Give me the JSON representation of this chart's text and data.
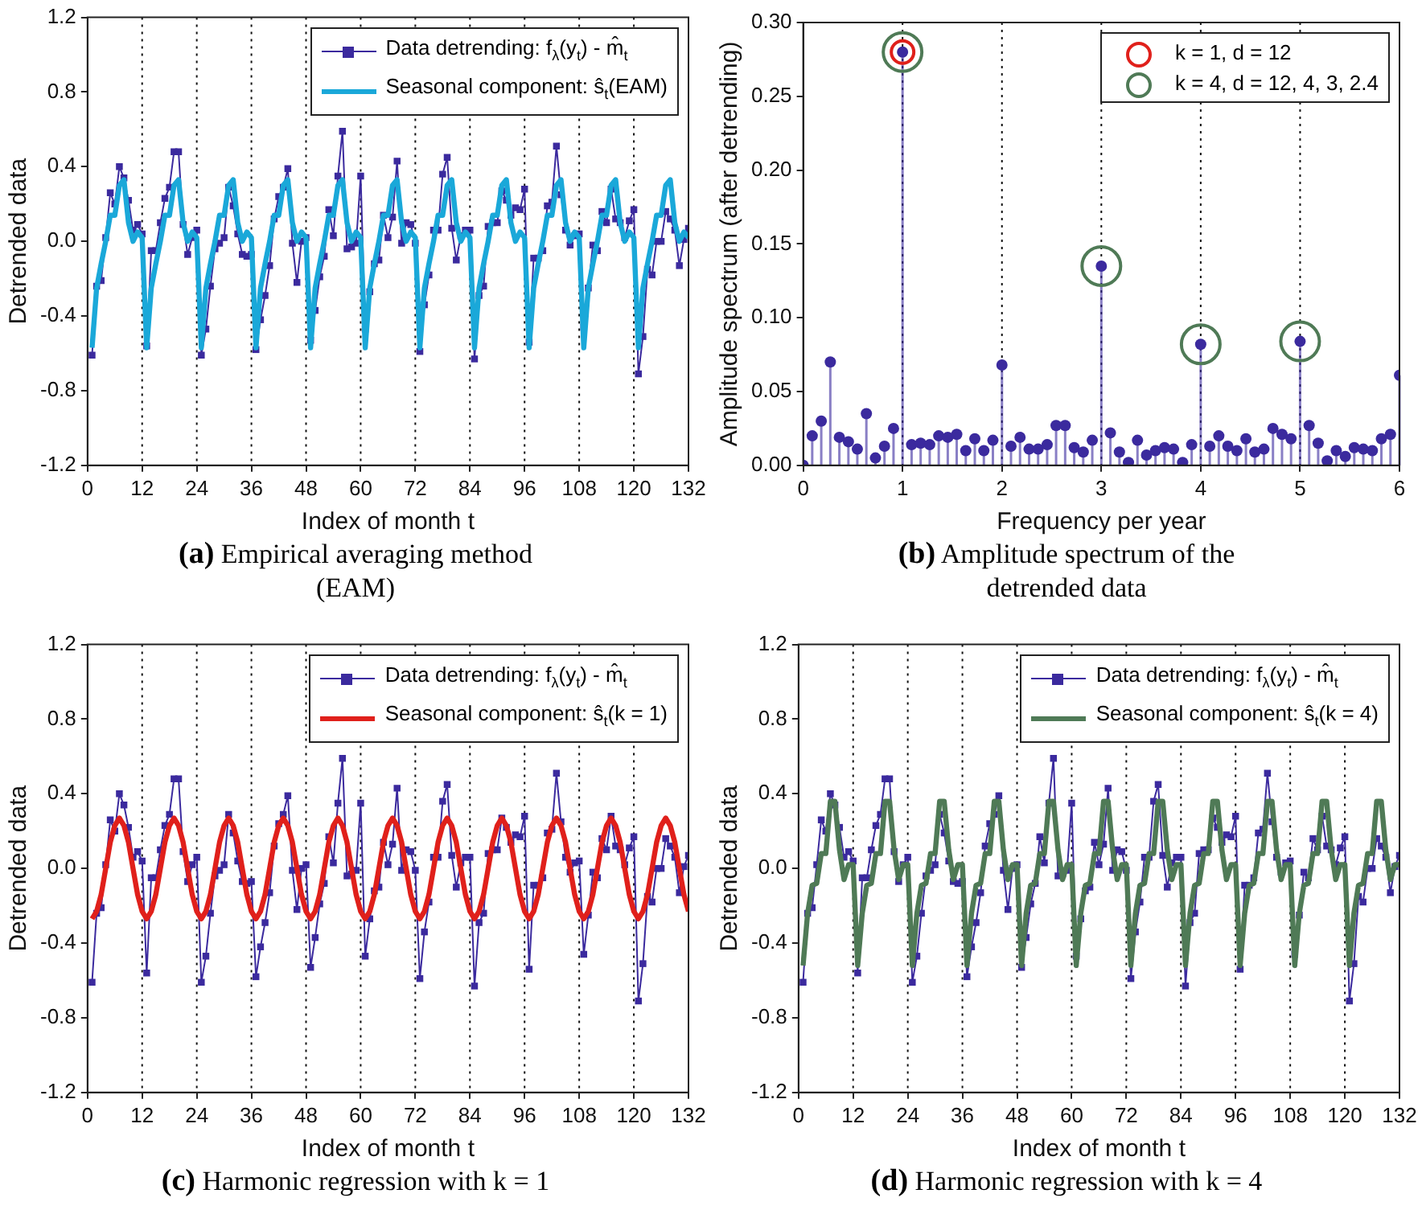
{
  "chart_data": [
    {
      "type": "line",
      "title": "(a) Empirical averaging method (EAM)",
      "xlabel": "Index of month t",
      "ylabel": "Detrended data",
      "legend": "top right",
      "xlim": [
        0,
        132
      ],
      "xticks": [
        0,
        12,
        24,
        36,
        48,
        60,
        72,
        84,
        96,
        108,
        120,
        132
      ],
      "ylim": [
        -1.2,
        1.2
      ],
      "yticks": [
        -1.2,
        -0.8,
        -0.4,
        {
          "value": 0,
          "label": "0.0"
        },
        0.4,
        0.8,
        1.2
      ],
      "x": [
        1,
        2,
        3,
        4,
        5,
        6,
        7,
        8,
        9,
        10,
        11,
        12,
        13,
        14,
        15,
        16,
        17,
        18,
        19,
        20,
        21,
        22,
        23,
        24,
        25,
        26,
        27,
        28,
        29,
        30,
        31,
        32,
        33,
        34,
        35,
        36,
        37,
        38,
        39,
        40,
        41,
        42,
        43,
        44,
        45,
        46,
        47,
        48,
        49,
        50,
        51,
        52,
        53,
        54,
        55,
        56,
        57,
        58,
        59,
        60,
        61,
        62,
        63,
        64,
        65,
        66,
        67,
        68,
        69,
        70,
        71,
        72,
        73,
        74,
        75,
        76,
        77,
        78,
        79,
        80,
        81,
        82,
        83,
        84,
        85,
        86,
        87,
        88,
        89,
        90,
        91,
        92,
        93,
        94,
        95,
        96,
        97,
        98,
        99,
        100,
        101,
        102,
        103,
        104,
        105,
        106,
        107,
        108,
        109,
        110,
        111,
        112,
        113,
        114,
        115,
        116,
        117,
        118,
        119,
        120,
        121,
        122,
        123,
        124,
        125,
        126,
        127,
        128,
        129,
        130,
        131,
        132
      ],
      "ref_lines": [
        {
          "axis": "x",
          "value": 12,
          "line_style": "dotted"
        },
        {
          "axis": "x",
          "value": 24,
          "line_style": "dotted"
        },
        {
          "axis": "x",
          "value": 36,
          "line_style": "dotted"
        },
        {
          "axis": "x",
          "value": 48,
          "line_style": "dotted"
        },
        {
          "axis": "x",
          "value": 60,
          "line_style": "dotted"
        },
        {
          "axis": "x",
          "value": 72,
          "line_style": "dotted"
        },
        {
          "axis": "x",
          "value": 84,
          "line_style": "dotted"
        },
        {
          "axis": "x",
          "value": 96,
          "line_style": "dotted"
        },
        {
          "axis": "x",
          "value": 108,
          "line_style": "dotted"
        },
        {
          "axis": "x",
          "value": 120,
          "line_style": "dotted"
        }
      ],
      "series": [
        {
          "name": "Data detrending: f$_{λ}$(y$_{t}$) - m̂$_{t}$",
          "color": "#3b2a9e",
          "marker": "square",
          "values": [
            -0.61,
            -0.24,
            -0.21,
            0.02,
            0.26,
            0.2,
            0.4,
            0.34,
            0.22,
            0.06,
            0.09,
            0.04,
            -0.56,
            -0.05,
            -0.05,
            0.1,
            0.23,
            0.29,
            0.48,
            0.48,
            0.09,
            -0.07,
            0.02,
            0.06,
            -0.61,
            -0.47,
            -0.24,
            -0.04,
            -0.01,
            0.02,
            0.29,
            0.19,
            0.04,
            -0.07,
            -0.08,
            -0.07,
            -0.58,
            -0.42,
            -0.29,
            -0.13,
            0.12,
            0.24,
            0.29,
            0.39,
            -0.01,
            -0.22,
            0.0,
            0.02,
            -0.53,
            -0.37,
            -0.19,
            -0.08,
            0.17,
            0.03,
            0.35,
            0.59,
            -0.04,
            -0.03,
            -0.01,
            0.35,
            -0.47,
            -0.27,
            -0.12,
            -0.1,
            0.14,
            0.02,
            0.13,
            0.43,
            -0.01,
            0.1,
            0.09,
            -0.01,
            -0.59,
            -0.34,
            -0.18,
            0.06,
            0.06,
            0.36,
            0.45,
            0.07,
            -0.1,
            0.03,
            0.06,
            0.06,
            -0.63,
            -0.29,
            -0.24,
            0.08,
            0.1,
            0.1,
            0.27,
            0.22,
            0.14,
            0.18,
            0.17,
            0.28,
            -0.54,
            -0.09,
            -0.09,
            -0.05,
            0.19,
            0.21,
            0.51,
            0.25,
            0.06,
            -0.02,
            0.03,
            0.04,
            -0.46,
            -0.25,
            -0.02,
            -0.05,
            0.16,
            0.1,
            0.28,
            0.12,
            0.1,
            0.02,
            0.11,
            0.17,
            -0.71,
            -0.51,
            -0.15,
            -0.18,
            0.0,
            0.0,
            0.16,
            0.12,
            0.06,
            -0.13,
            0.01,
            0.07
          ]
        },
        {
          "name": "Seasonal component: ŝ$_{t}$(EAM)",
          "color": "#1aa8d9",
          "values": [
            -0.57,
            -0.25,
            -0.12,
            0.0,
            0.14,
            0.14,
            0.3,
            0.33,
            0.1,
            0.0,
            0.05,
            0.02,
            -0.57,
            -0.25,
            -0.12,
            0.0,
            0.14,
            0.14,
            0.3,
            0.33,
            0.1,
            0.0,
            0.05,
            0.02,
            -0.57,
            -0.25,
            -0.12,
            0.0,
            0.14,
            0.14,
            0.3,
            0.33,
            0.1,
            0.0,
            0.05,
            0.02,
            -0.57,
            -0.25,
            -0.12,
            0.0,
            0.14,
            0.14,
            0.3,
            0.33,
            0.1,
            0.0,
            0.05,
            0.02,
            -0.57,
            -0.25,
            -0.12,
            0.0,
            0.14,
            0.14,
            0.3,
            0.33,
            0.1,
            0.0,
            0.05,
            0.02,
            -0.57,
            -0.25,
            -0.12,
            0.0,
            0.14,
            0.14,
            0.3,
            0.33,
            0.1,
            0.0,
            0.05,
            0.02,
            -0.57,
            -0.25,
            -0.12,
            0.0,
            0.14,
            0.14,
            0.3,
            0.33,
            0.1,
            0.0,
            0.05,
            0.02,
            -0.57,
            -0.25,
            -0.12,
            0.0,
            0.14,
            0.14,
            0.3,
            0.33,
            0.1,
            0.0,
            0.05,
            0.02,
            -0.57,
            -0.25,
            -0.12,
            0.0,
            0.14,
            0.14,
            0.3,
            0.33,
            0.1,
            0.0,
            0.05,
            0.02,
            -0.57,
            -0.25,
            -0.12,
            0.0,
            0.14,
            0.14,
            0.3,
            0.33,
            0.1,
            0.0,
            0.05,
            0.02,
            -0.57,
            -0.25,
            -0.12,
            0.0,
            0.14,
            0.14,
            0.3,
            0.33,
            0.1,
            0.0,
            0.05,
            0.02
          ]
        }
      ]
    },
    {
      "type": "lollipop",
      "title": "(b) Amplitude spectrum of the detrended data",
      "xlabel": "Frequency per year",
      "ylabel": "Amplitude spectrum (after detrending)",
      "legend": "top right",
      "xlim": [
        0,
        6
      ],
      "xticks": [
        0,
        1,
        2,
        3,
        4,
        5,
        6
      ],
      "ylim": [
        0,
        0.3
      ],
      "yticks": [
        {
          "value": 0,
          "label": "0.00"
        },
        {
          "value": 0.05,
          "label": "0.05"
        },
        {
          "value": 0.1,
          "label": "0.10"
        },
        {
          "value": 0.15,
          "label": "0.15"
        },
        {
          "value": 0.2,
          "label": "0.20"
        },
        {
          "value": 0.25,
          "label": "0.25"
        },
        {
          "value": 0.3,
          "label": "0.30"
        }
      ],
      "ref_lines": [
        {
          "axis": "x",
          "value": 1,
          "line_style": "dotted"
        },
        {
          "axis": "x",
          "value": 2,
          "line_style": "dotted"
        },
        {
          "axis": "x",
          "value": 3,
          "line_style": "dotted"
        },
        {
          "axis": "x",
          "value": 4,
          "line_style": "dotted"
        },
        {
          "axis": "x",
          "value": 5,
          "line_style": "dotted"
        }
      ],
      "series": [
        {
          "color": "#3b2a9e",
          "marker": "circle",
          "x": [
            0,
            0.091,
            0.182,
            0.273,
            0.364,
            0.455,
            0.545,
            0.636,
            0.727,
            0.818,
            0.909,
            1,
            1.091,
            1.182,
            1.273,
            1.364,
            1.455,
            1.545,
            1.636,
            1.727,
            1.818,
            1.909,
            2,
            2.091,
            2.182,
            2.273,
            2.364,
            2.455,
            2.545,
            2.636,
            2.727,
            2.818,
            2.909,
            3,
            3.091,
            3.182,
            3.273,
            3.364,
            3.455,
            3.545,
            3.636,
            3.727,
            3.818,
            3.909,
            4,
            4.091,
            4.182,
            4.273,
            4.364,
            4.455,
            4.545,
            4.636,
            4.727,
            4.818,
            4.909,
            5,
            5.091,
            5.182,
            5.273,
            5.364,
            5.455,
            5.545,
            5.636,
            5.727,
            5.818,
            5.909,
            6
          ],
          "values": [
            0.0,
            0.02,
            0.03,
            0.07,
            0.019,
            0.016,
            0.011,
            0.035,
            0.005,
            0.013,
            0.025,
            0.28,
            0.014,
            0.015,
            0.014,
            0.02,
            0.019,
            0.021,
            0.01,
            0.018,
            0.01,
            0.017,
            0.068,
            0.013,
            0.019,
            0.011,
            0.011,
            0.014,
            0.027,
            0.027,
            0.012,
            0.009,
            0.017,
            0.135,
            0.022,
            0.009,
            0.002,
            0.017,
            0.007,
            0.01,
            0.012,
            0.011,
            0.002,
            0.014,
            0.082,
            0.013,
            0.02,
            0.013,
            0.01,
            0.018,
            0.009,
            0.011,
            0.025,
            0.021,
            0.018,
            0.084,
            0.027,
            0.015,
            0.003,
            0.01,
            0.006,
            0.012,
            0.011,
            0.01,
            0.018,
            0.021,
            0.061
          ]
        },
        {
          "type": "scatter",
          "name": "k = 1, d = 12",
          "color": "#e0201b",
          "marker": "circle",
          "x": [
            1
          ],
          "values": [
            0.28
          ]
        },
        {
          "type": "scatter",
          "name": "k = 4, d = 12, 4, 3, 2.4",
          "color": "#4f7a56",
          "marker": "circle",
          "x": [
            1,
            3,
            4,
            5
          ],
          "values": [
            0.28,
            0.135,
            0.082,
            0.084
          ]
        }
      ]
    },
    {
      "type": "line",
      "title": "(c) Harmonic regression with k = 1",
      "xlabel": "Index of month t",
      "ylabel": "Detrended data",
      "legend": "top right",
      "xlim": [
        0,
        132
      ],
      "xticks": [
        0,
        12,
        24,
        36,
        48,
        60,
        72,
        84,
        96,
        108,
        120,
        132
      ],
      "ylim": [
        -1.2,
        1.2
      ],
      "yticks": [
        -1.2,
        -0.8,
        -0.4,
        {
          "value": 0,
          "label": "0.0"
        },
        0.4,
        0.8,
        1.2
      ],
      "x": [
        1,
        2,
        3,
        4,
        5,
        6,
        7,
        8,
        9,
        10,
        11,
        12,
        13,
        14,
        15,
        16,
        17,
        18,
        19,
        20,
        21,
        22,
        23,
        24,
        25,
        26,
        27,
        28,
        29,
        30,
        31,
        32,
        33,
        34,
        35,
        36,
        37,
        38,
        39,
        40,
        41,
        42,
        43,
        44,
        45,
        46,
        47,
        48,
        49,
        50,
        51,
        52,
        53,
        54,
        55,
        56,
        57,
        58,
        59,
        60,
        61,
        62,
        63,
        64,
        65,
        66,
        67,
        68,
        69,
        70,
        71,
        72,
        73,
        74,
        75,
        76,
        77,
        78,
        79,
        80,
        81,
        82,
        83,
        84,
        85,
        86,
        87,
        88,
        89,
        90,
        91,
        92,
        93,
        94,
        95,
        96,
        97,
        98,
        99,
        100,
        101,
        102,
        103,
        104,
        105,
        106,
        107,
        108,
        109,
        110,
        111,
        112,
        113,
        114,
        115,
        116,
        117,
        118,
        119,
        120,
        121,
        122,
        123,
        124,
        125,
        126,
        127,
        128,
        129,
        130,
        131,
        132
      ],
      "ref_lines": [
        {
          "axis": "x",
          "value": 12,
          "line_style": "dotted"
        },
        {
          "axis": "x",
          "value": 24,
          "line_style": "dotted"
        },
        {
          "axis": "x",
          "value": 36,
          "line_style": "dotted"
        },
        {
          "axis": "x",
          "value": 48,
          "line_style": "dotted"
        },
        {
          "axis": "x",
          "value": 60,
          "line_style": "dotted"
        },
        {
          "axis": "x",
          "value": 72,
          "line_style": "dotted"
        },
        {
          "axis": "x",
          "value": 84,
          "line_style": "dotted"
        },
        {
          "axis": "x",
          "value": 96,
          "line_style": "dotted"
        },
        {
          "axis": "x",
          "value": 108,
          "line_style": "dotted"
        },
        {
          "axis": "x",
          "value": 120,
          "line_style": "dotted"
        }
      ],
      "series": [
        {
          "name": "Data detrending: f$_{λ}$(y$_{t}$) - m̂$_{t}$",
          "color": "#3b2a9e",
          "marker": "square",
          "values": [
            -0.61,
            -0.24,
            -0.21,
            0.02,
            0.26,
            0.2,
            0.4,
            0.34,
            0.22,
            0.06,
            0.09,
            0.04,
            -0.56,
            -0.05,
            -0.05,
            0.1,
            0.23,
            0.29,
            0.48,
            0.48,
            0.09,
            -0.07,
            0.02,
            0.06,
            -0.61,
            -0.47,
            -0.24,
            -0.04,
            -0.01,
            0.02,
            0.29,
            0.19,
            0.04,
            -0.07,
            -0.08,
            -0.07,
            -0.58,
            -0.42,
            -0.29,
            -0.13,
            0.12,
            0.24,
            0.29,
            0.39,
            -0.01,
            -0.22,
            0.0,
            0.02,
            -0.53,
            -0.37,
            -0.19,
            -0.08,
            0.17,
            0.03,
            0.35,
            0.59,
            -0.04,
            -0.03,
            -0.01,
            0.35,
            -0.47,
            -0.27,
            -0.12,
            -0.1,
            0.14,
            0.02,
            0.13,
            0.43,
            -0.01,
            0.1,
            0.09,
            -0.01,
            -0.59,
            -0.34,
            -0.18,
            0.06,
            0.06,
            0.36,
            0.45,
            0.07,
            -0.1,
            0.03,
            0.06,
            0.06,
            -0.63,
            -0.29,
            -0.24,
            0.08,
            0.1,
            0.1,
            0.27,
            0.22,
            0.14,
            0.18,
            0.17,
            0.28,
            -0.54,
            -0.09,
            -0.09,
            -0.05,
            0.19,
            0.21,
            0.51,
            0.25,
            0.06,
            -0.02,
            0.03,
            0.04,
            -0.46,
            -0.25,
            -0.02,
            -0.05,
            0.16,
            0.1,
            0.28,
            0.12,
            0.1,
            0.02,
            0.11,
            0.17,
            -0.71,
            -0.51,
            -0.15,
            -0.18,
            0.0,
            0.0,
            0.16,
            0.12,
            0.06,
            -0.13,
            0.01,
            0.07
          ]
        },
        {
          "name": "Seasonal component: ŝ$_{t}$(k = 1)",
          "color": "#e0201b",
          "values": [
            -0.27,
            -0.23,
            -0.14,
            0.0,
            0.14,
            0.23,
            0.27,
            0.23,
            0.14,
            0.0,
            -0.14,
            -0.23,
            -0.27,
            -0.23,
            -0.14,
            0.0,
            0.14,
            0.23,
            0.27,
            0.23,
            0.14,
            0.0,
            -0.14,
            -0.23,
            -0.27,
            -0.23,
            -0.14,
            0.0,
            0.14,
            0.23,
            0.27,
            0.23,
            0.14,
            0.0,
            -0.14,
            -0.23,
            -0.27,
            -0.23,
            -0.14,
            0.0,
            0.14,
            0.23,
            0.27,
            0.23,
            0.14,
            0.0,
            -0.14,
            -0.23,
            -0.27,
            -0.23,
            -0.14,
            0.0,
            0.14,
            0.23,
            0.27,
            0.23,
            0.14,
            0.0,
            -0.14,
            -0.23,
            -0.27,
            -0.23,
            -0.14,
            0.0,
            0.14,
            0.23,
            0.27,
            0.23,
            0.14,
            0.0,
            -0.14,
            -0.23,
            -0.27,
            -0.23,
            -0.14,
            0.0,
            0.14,
            0.23,
            0.27,
            0.23,
            0.14,
            0.0,
            -0.14,
            -0.23,
            -0.27,
            -0.23,
            -0.14,
            0.0,
            0.14,
            0.23,
            0.27,
            0.23,
            0.14,
            0.0,
            -0.14,
            -0.23,
            -0.27,
            -0.23,
            -0.14,
            0.0,
            0.14,
            0.23,
            0.27,
            0.23,
            0.14,
            0.0,
            -0.14,
            -0.23,
            -0.27,
            -0.23,
            -0.14,
            0.0,
            0.14,
            0.23,
            0.27,
            0.23,
            0.14,
            0.0,
            -0.14,
            -0.23,
            -0.27,
            -0.23,
            -0.14,
            0.0,
            0.14,
            0.23,
            0.27,
            0.23,
            0.14,
            0.0,
            -0.14,
            -0.23
          ]
        }
      ]
    },
    {
      "type": "line",
      "title": "(d) Harmonic regression with k = 4",
      "xlabel": "Index of month t",
      "ylabel": "Detrended data",
      "legend": "top right",
      "xlim": [
        0,
        132
      ],
      "xticks": [
        0,
        12,
        24,
        36,
        48,
        60,
        72,
        84,
        96,
        108,
        120,
        132
      ],
      "ylim": [
        -1.2,
        1.2
      ],
      "yticks": [
        -1.2,
        -0.8,
        -0.4,
        {
          "value": 0,
          "label": "0.0"
        },
        0.4,
        0.8,
        1.2
      ],
      "x": [
        1,
        2,
        3,
        4,
        5,
        6,
        7,
        8,
        9,
        10,
        11,
        12,
        13,
        14,
        15,
        16,
        17,
        18,
        19,
        20,
        21,
        22,
        23,
        24,
        25,
        26,
        27,
        28,
        29,
        30,
        31,
        32,
        33,
        34,
        35,
        36,
        37,
        38,
        39,
        40,
        41,
        42,
        43,
        44,
        45,
        46,
        47,
        48,
        49,
        50,
        51,
        52,
        53,
        54,
        55,
        56,
        57,
        58,
        59,
        60,
        61,
        62,
        63,
        64,
        65,
        66,
        67,
        68,
        69,
        70,
        71,
        72,
        73,
        74,
        75,
        76,
        77,
        78,
        79,
        80,
        81,
        82,
        83,
        84,
        85,
        86,
        87,
        88,
        89,
        90,
        91,
        92,
        93,
        94,
        95,
        96,
        97,
        98,
        99,
        100,
        101,
        102,
        103,
        104,
        105,
        106,
        107,
        108,
        109,
        110,
        111,
        112,
        113,
        114,
        115,
        116,
        117,
        118,
        119,
        120,
        121,
        122,
        123,
        124,
        125,
        126,
        127,
        128,
        129,
        130,
        131,
        132
      ],
      "ref_lines": [
        {
          "axis": "x",
          "value": 12,
          "line_style": "dotted"
        },
        {
          "axis": "x",
          "value": 24,
          "line_style": "dotted"
        },
        {
          "axis": "x",
          "value": 36,
          "line_style": "dotted"
        },
        {
          "axis": "x",
          "value": 48,
          "line_style": "dotted"
        },
        {
          "axis": "x",
          "value": 60,
          "line_style": "dotted"
        },
        {
          "axis": "x",
          "value": 72,
          "line_style": "dotted"
        },
        {
          "axis": "x",
          "value": 84,
          "line_style": "dotted"
        },
        {
          "axis": "x",
          "value": 96,
          "line_style": "dotted"
        },
        {
          "axis": "x",
          "value": 108,
          "line_style": "dotted"
        },
        {
          "axis": "x",
          "value": 120,
          "line_style": "dotted"
        }
      ],
      "series": [
        {
          "name": "Data detrending: f$_{λ}$(y$_{t}$) - m̂$_{t}$",
          "color": "#3b2a9e",
          "marker": "square",
          "values": [
            -0.61,
            -0.24,
            -0.21,
            0.02,
            0.26,
            0.2,
            0.4,
            0.34,
            0.22,
            0.06,
            0.09,
            0.04,
            -0.56,
            -0.05,
            -0.05,
            0.1,
            0.23,
            0.29,
            0.48,
            0.48,
            0.09,
            -0.07,
            0.02,
            0.06,
            -0.61,
            -0.47,
            -0.24,
            -0.04,
            -0.01,
            0.02,
            0.29,
            0.19,
            0.04,
            -0.07,
            -0.08,
            -0.07,
            -0.58,
            -0.42,
            -0.29,
            -0.13,
            0.12,
            0.24,
            0.29,
            0.39,
            -0.01,
            -0.22,
            0.0,
            0.02,
            -0.53,
            -0.37,
            -0.19,
            -0.08,
            0.17,
            0.03,
            0.35,
            0.59,
            -0.04,
            -0.03,
            -0.01,
            0.35,
            -0.47,
            -0.27,
            -0.12,
            -0.1,
            0.14,
            0.02,
            0.13,
            0.43,
            -0.01,
            0.1,
            0.09,
            -0.01,
            -0.59,
            -0.34,
            -0.18,
            0.06,
            0.06,
            0.36,
            0.45,
            0.07,
            -0.1,
            0.03,
            0.06,
            0.06,
            -0.63,
            -0.29,
            -0.24,
            0.08,
            0.1,
            0.1,
            0.27,
            0.22,
            0.14,
            0.18,
            0.17,
            0.28,
            -0.54,
            -0.09,
            -0.09,
            -0.05,
            0.19,
            0.21,
            0.51,
            0.25,
            0.06,
            -0.02,
            0.03,
            0.04,
            -0.46,
            -0.25,
            -0.02,
            -0.05,
            0.16,
            0.1,
            0.28,
            0.12,
            0.1,
            0.02,
            0.11,
            0.17,
            -0.71,
            -0.51,
            -0.15,
            -0.18,
            0.0,
            0.0,
            0.16,
            0.12,
            0.06,
            -0.13,
            0.01,
            0.07
          ]
        },
        {
          "name": "Seasonal component: ŝ$_{t}$(k = 4)",
          "color": "#4f7a56",
          "values": [
            -0.52,
            -0.24,
            -0.09,
            -0.08,
            0.08,
            0.08,
            0.36,
            0.36,
            0.1,
            -0.06,
            0.02,
            0.02,
            -0.52,
            -0.24,
            -0.09,
            -0.08,
            0.08,
            0.08,
            0.36,
            0.36,
            0.1,
            -0.06,
            0.02,
            0.02,
            -0.52,
            -0.24,
            -0.09,
            -0.08,
            0.08,
            0.08,
            0.36,
            0.36,
            0.1,
            -0.06,
            0.02,
            0.02,
            -0.52,
            -0.24,
            -0.09,
            -0.08,
            0.08,
            0.08,
            0.36,
            0.36,
            0.1,
            -0.06,
            0.02,
            0.02,
            -0.52,
            -0.24,
            -0.09,
            -0.08,
            0.08,
            0.08,
            0.36,
            0.36,
            0.1,
            -0.06,
            0.02,
            0.02,
            -0.52,
            -0.24,
            -0.09,
            -0.08,
            0.08,
            0.08,
            0.36,
            0.36,
            0.1,
            -0.06,
            0.02,
            0.02,
            -0.52,
            -0.24,
            -0.09,
            -0.08,
            0.08,
            0.08,
            0.36,
            0.36,
            0.1,
            -0.06,
            0.02,
            0.02,
            -0.52,
            -0.24,
            -0.09,
            -0.08,
            0.08,
            0.08,
            0.36,
            0.36,
            0.1,
            -0.06,
            0.02,
            0.02,
            -0.52,
            -0.24,
            -0.09,
            -0.08,
            0.08,
            0.08,
            0.36,
            0.36,
            0.1,
            -0.06,
            0.02,
            0.02,
            -0.52,
            -0.24,
            -0.09,
            -0.08,
            0.08,
            0.08,
            0.36,
            0.36,
            0.1,
            -0.06,
            0.02,
            0.02,
            -0.52,
            -0.24,
            -0.09,
            -0.08,
            0.08,
            0.08,
            0.36,
            0.36,
            0.1,
            -0.06,
            0.02,
            0.02
          ]
        }
      ]
    }
  ]
}
